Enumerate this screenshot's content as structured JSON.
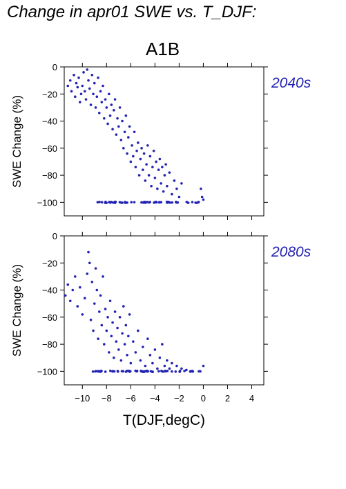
{
  "title": "Change in apr01 SWE vs. T_DJF:",
  "scenario": "A1B",
  "colors": {
    "points": "#2323b4",
    "period_label": "#2323b4",
    "axis": "#000000"
  },
  "chart_data": [
    {
      "type": "scatter",
      "period": "2040s",
      "xlabel": "",
      "ylabel": "SWE Change (%)",
      "xlim": [
        -11.5,
        5
      ],
      "ylim": [
        -110,
        0
      ],
      "yticks": [
        0,
        -20,
        -40,
        -60,
        -80,
        -100
      ],
      "xticks": [
        -10,
        -8,
        -6,
        -4,
        -2,
        0,
        2,
        4
      ],
      "xtick_labels_shown": false,
      "grid": false,
      "points_note": "approx. 1000 points; dense band -20..-90% between -11 and -2 degC with floor cluster at -100% from -9 to 0 degC",
      "points": [
        [
          -11.2,
          -14
        ],
        [
          -11.0,
          -10
        ],
        [
          -10.9,
          -18
        ],
        [
          -10.7,
          -6
        ],
        [
          -10.6,
          -22
        ],
        [
          -10.5,
          -12
        ],
        [
          -10.4,
          -15
        ],
        [
          -10.3,
          -8
        ],
        [
          -10.2,
          -26
        ],
        [
          -10.1,
          -20
        ],
        [
          -10.0,
          -14
        ],
        [
          -9.9,
          -4
        ],
        [
          -9.8,
          -18
        ],
        [
          -9.7,
          -24
        ],
        [
          -9.6,
          -2
        ],
        [
          -9.5,
          -10
        ],
        [
          -9.4,
          -16
        ],
        [
          -9.3,
          -28
        ],
        [
          -9.2,
          -6
        ],
        [
          -9.1,
          -20
        ],
        [
          -9.0,
          -12
        ],
        [
          -8.9,
          -30
        ],
        [
          -8.8,
          -22
        ],
        [
          -8.7,
          -8
        ],
        [
          -8.6,
          -34
        ],
        [
          -8.5,
          -18
        ],
        [
          -8.4,
          -26
        ],
        [
          -8.3,
          -14
        ],
        [
          -8.2,
          -38
        ],
        [
          -8.1,
          -24
        ],
        [
          -8.0,
          -30
        ],
        [
          -7.9,
          -42
        ],
        [
          -7.8,
          -20
        ],
        [
          -7.7,
          -36
        ],
        [
          -7.6,
          -28
        ],
        [
          -7.5,
          -46
        ],
        [
          -7.4,
          -32
        ],
        [
          -7.3,
          -24
        ],
        [
          -7.2,
          -50
        ],
        [
          -7.1,
          -38
        ],
        [
          -7.0,
          -44
        ],
        [
          -6.9,
          -30
        ],
        [
          -6.8,
          -54
        ],
        [
          -6.7,
          -40
        ],
        [
          -6.6,
          -60
        ],
        [
          -6.5,
          -48
        ],
        [
          -6.4,
          -36
        ],
        [
          -6.3,
          -64
        ],
        [
          -6.2,
          -52
        ],
        [
          -6.1,
          -44
        ],
        [
          -6.0,
          -70
        ],
        [
          -5.9,
          -58
        ],
        [
          -5.8,
          -66
        ],
        [
          -5.7,
          -48
        ],
        [
          -5.6,
          -74
        ],
        [
          -5.5,
          -62
        ],
        [
          -5.4,
          -56
        ],
        [
          -5.3,
          -80
        ],
        [
          -5.2,
          -68
        ],
        [
          -5.1,
          -60
        ],
        [
          -5.0,
          -76
        ],
        [
          -4.9,
          -64
        ],
        [
          -4.8,
          -84
        ],
        [
          -4.7,
          -72
        ],
        [
          -4.6,
          -58
        ],
        [
          -4.5,
          -80
        ],
        [
          -4.4,
          -66
        ],
        [
          -4.3,
          -88
        ],
        [
          -4.2,
          -74
        ],
        [
          -4.1,
          -62
        ],
        [
          -4.0,
          -82
        ],
        [
          -3.9,
          -70
        ],
        [
          -3.8,
          -90
        ],
        [
          -3.7,
          -76
        ],
        [
          -3.6,
          -68
        ],
        [
          -3.5,
          -86
        ],
        [
          -3.4,
          -74
        ],
        [
          -3.3,
          -92
        ],
        [
          -3.2,
          -80
        ],
        [
          -3.1,
          -72
        ],
        [
          -3.0,
          -88
        ],
        [
          -2.8,
          -78
        ],
        [
          -2.6,
          -94
        ],
        [
          -2.4,
          -84
        ],
        [
          -2.2,
          -90
        ],
        [
          -2.0,
          -96
        ],
        [
          -1.8,
          -86
        ],
        [
          -0.2,
          -90
        ],
        [
          0.0,
          -98
        ],
        [
          -0.1,
          -96
        ]
      ],
      "floor_points": {
        "y": -100,
        "x_range": [
          -8.8,
          0
        ],
        "count": 60
      }
    },
    {
      "type": "scatter",
      "period": "2080s",
      "xlabel": "T(DJF,degC)",
      "ylabel": "SWE Change (%)",
      "xlim": [
        -11.5,
        5
      ],
      "ylim": [
        -110,
        0
      ],
      "yticks": [
        0,
        -20,
        -40,
        -60,
        -80,
        -100
      ],
      "xticks": [
        -10,
        -8,
        -6,
        -4,
        -2,
        0,
        2,
        4
      ],
      "xtick_labels_shown": true,
      "grid": false,
      "points_note": "approx. 800 points; band from -12% near -9.5 degC descending to -100% near 0 degC with floor cluster",
      "points": [
        [
          -11.4,
          -44
        ],
        [
          -11.2,
          -36
        ],
        [
          -11.0,
          -48
        ],
        [
          -10.8,
          -40
        ],
        [
          -10.6,
          -30
        ],
        [
          -10.4,
          -52
        ],
        [
          -10.2,
          -38
        ],
        [
          -10.0,
          -58
        ],
        [
          -9.8,
          -46
        ],
        [
          -9.6,
          -28
        ],
        [
          -9.5,
          -12
        ],
        [
          -9.4,
          -20
        ],
        [
          -9.3,
          -62
        ],
        [
          -9.2,
          -34
        ],
        [
          -9.1,
          -70
        ],
        [
          -9.0,
          -50
        ],
        [
          -8.9,
          -24
        ],
        [
          -8.8,
          -40
        ],
        [
          -8.7,
          -76
        ],
        [
          -8.6,
          -56
        ],
        [
          -8.5,
          -44
        ],
        [
          -8.4,
          -66
        ],
        [
          -8.3,
          -30
        ],
        [
          -8.2,
          -80
        ],
        [
          -8.1,
          -54
        ],
        [
          -8.0,
          -70
        ],
        [
          -7.9,
          -60
        ],
        [
          -7.8,
          -86
        ],
        [
          -7.7,
          -48
        ],
        [
          -7.6,
          -74
        ],
        [
          -7.5,
          -64
        ],
        [
          -7.4,
          -90
        ],
        [
          -7.3,
          -56
        ],
        [
          -7.2,
          -78
        ],
        [
          -7.1,
          -68
        ],
        [
          -7.0,
          -84
        ],
        [
          -6.9,
          -60
        ],
        [
          -6.8,
          -92
        ],
        [
          -6.7,
          -72
        ],
        [
          -6.6,
          -52
        ],
        [
          -6.5,
          -80
        ],
        [
          -6.4,
          -66
        ],
        [
          -6.3,
          -88
        ],
        [
          -6.2,
          -74
        ],
        [
          -6.1,
          -58
        ],
        [
          -6.0,
          -94
        ],
        [
          -5.8,
          -78
        ],
        [
          -5.6,
          -86
        ],
        [
          -5.4,
          -70
        ],
        [
          -5.2,
          -92
        ],
        [
          -5.0,
          -82
        ],
        [
          -4.8,
          -96
        ],
        [
          -4.6,
          -76
        ],
        [
          -4.4,
          -88
        ],
        [
          -4.2,
          -94
        ],
        [
          -4.0,
          -84
        ],
        [
          -3.8,
          -98
        ],
        [
          -3.6,
          -90
        ],
        [
          -3.4,
          -80
        ],
        [
          -3.2,
          -96
        ],
        [
          -3.0,
          -92
        ],
        [
          -2.8,
          -98
        ],
        [
          -2.6,
          -94
        ],
        [
          -2.2,
          -96
        ],
        [
          -1.8,
          -98
        ],
        [
          -1.4,
          -99
        ],
        [
          0.0,
          -96
        ]
      ],
      "floor_points": {
        "y": -100,
        "x_range": [
          -9.2,
          0
        ],
        "count": 60
      }
    }
  ]
}
